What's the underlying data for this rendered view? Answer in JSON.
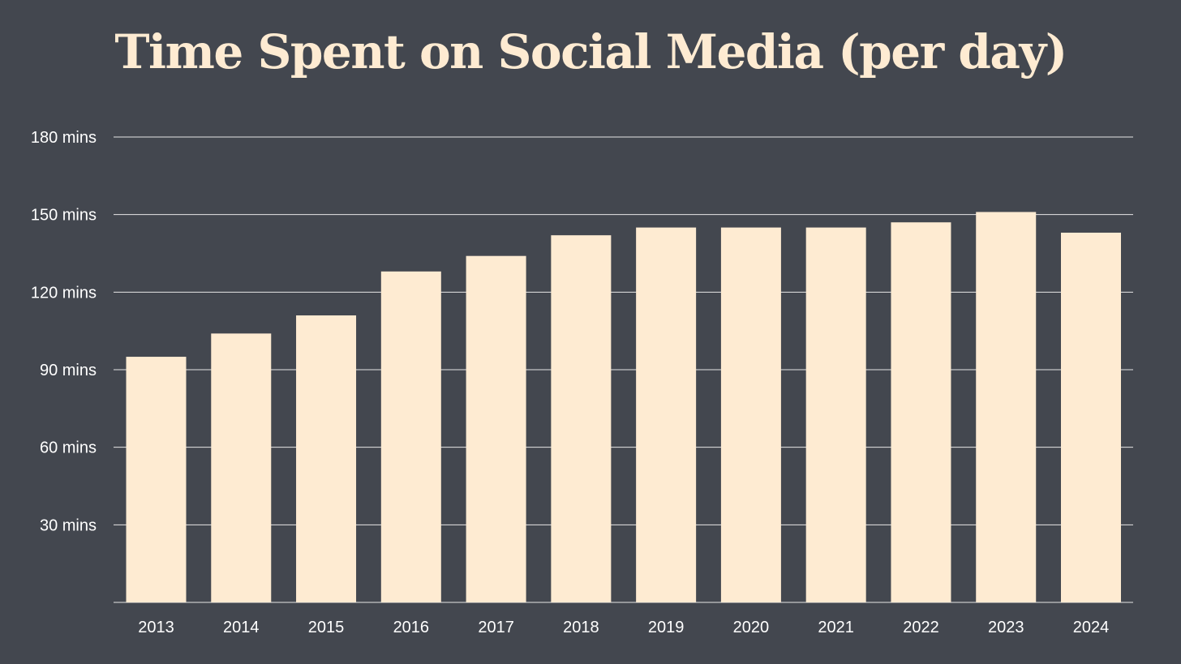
{
  "colors": {
    "background": "#43474f",
    "bar": "#feebd2",
    "title": "#feebd2",
    "text": "#ffffff",
    "grid": "#e6e6e6"
  },
  "chart_data": {
    "type": "bar",
    "title": "Time Spent on Social Media (per day)",
    "xlabel": "",
    "ylabel": "",
    "categories": [
      "2013",
      "2014",
      "2015",
      "2016",
      "2017",
      "2018",
      "2019",
      "2020",
      "2021",
      "2022",
      "2023",
      "2024"
    ],
    "values": [
      95,
      104,
      111,
      128,
      134,
      142,
      145,
      145,
      145,
      147,
      151,
      143
    ],
    "ylim": [
      0,
      180
    ],
    "yticks": [
      30,
      60,
      90,
      120,
      150,
      180
    ],
    "ytick_labels": [
      "30 mins",
      "60 mins",
      "90 mins",
      "120 mins",
      "150 mins",
      "180 mins"
    ],
    "grid": true,
    "legend": "none"
  }
}
